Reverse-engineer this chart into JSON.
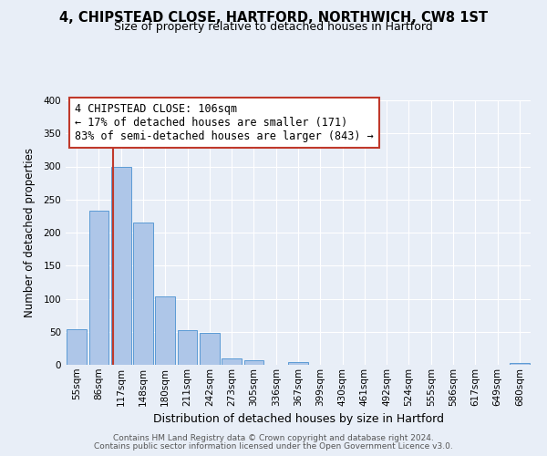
{
  "title1": "4, CHIPSTEAD CLOSE, HARTFORD, NORTHWICH, CW8 1ST",
  "title2": "Size of property relative to detached houses in Hartford",
  "xlabel": "Distribution of detached houses by size in Hartford",
  "ylabel": "Number of detached properties",
  "bin_labels": [
    "55sqm",
    "86sqm",
    "117sqm",
    "148sqm",
    "180sqm",
    "211sqm",
    "242sqm",
    "273sqm",
    "305sqm",
    "336sqm",
    "367sqm",
    "399sqm",
    "430sqm",
    "461sqm",
    "492sqm",
    "524sqm",
    "555sqm",
    "586sqm",
    "617sqm",
    "649sqm",
    "680sqm"
  ],
  "bar_values": [
    54,
    233,
    299,
    215,
    103,
    52,
    48,
    10,
    7,
    0,
    4,
    0,
    0,
    0,
    0,
    0,
    0,
    0,
    0,
    0,
    3
  ],
  "bar_color": "#aec6e8",
  "bar_edge_color": "#5b9bd5",
  "vline_color": "#c0392b",
  "annotation_text": "4 CHIPSTEAD CLOSE: 106sqm\n← 17% of detached houses are smaller (171)\n83% of semi-detached houses are larger (843) →",
  "annotation_box_color": "#ffffff",
  "annotation_box_edge": "#c0392b",
  "ylim": [
    0,
    400
  ],
  "yticks": [
    0,
    50,
    100,
    150,
    200,
    250,
    300,
    350,
    400
  ],
  "footer1": "Contains HM Land Registry data © Crown copyright and database right 2024.",
  "footer2": "Contains public sector information licensed under the Open Government Licence v3.0.",
  "background_color": "#e8eef7",
  "plot_bg_color": "#e8eef7",
  "grid_color": "#ffffff",
  "title1_fontsize": 10.5,
  "title2_fontsize": 9,
  "xlabel_fontsize": 9,
  "ylabel_fontsize": 8.5,
  "tick_fontsize": 7.5,
  "footer_fontsize": 6.5,
  "annot_fontsize": 8.5
}
